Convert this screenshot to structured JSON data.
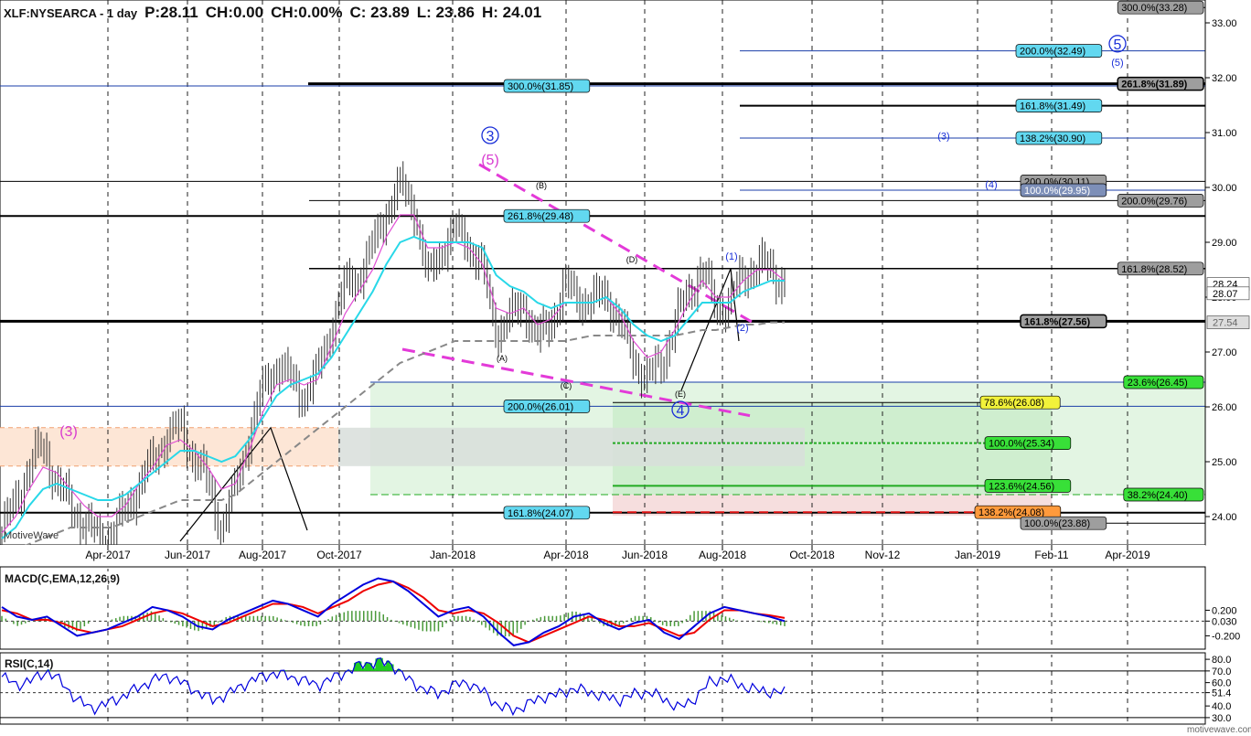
{
  "header": {
    "symbol": "XLF:NYSEARCA - 1 day",
    "price": "P:28.11",
    "change": "CH:0.00",
    "change_pct": "CH:0.00%",
    "close": "C: 23.89",
    "low": "L: 23.86",
    "high": "H: 24.01"
  },
  "watermarks": {
    "left": "MotiveWave",
    "footer": "motivewave.com"
  },
  "chart_data": [
    {
      "type": "candlestick",
      "title": "XLF:NYSEARCA - 1 day",
      "x_ticks": [
        "Apr-2017",
        "Jun-2017",
        "Aug-2017",
        "Oct-2017",
        "Jan-2018",
        "Apr-2018",
        "Jun-2018",
        "Aug-2018",
        "Oct-2018",
        "Nov-12",
        "Jan-2019",
        "Feb-11",
        "Apr-2019"
      ],
      "y_ticks": [
        24.0,
        25.0,
        26.0,
        27.0,
        28.0,
        29.0,
        30.0,
        31.0,
        32.0,
        33.0
      ],
      "ylim": [
        23.55,
        33.35
      ],
      "price_tags": [
        {
          "text": "28.24",
          "value": 28.24,
          "style": "white"
        },
        {
          "text": "28.07",
          "value": 28.07,
          "style": "white"
        },
        {
          "text": "27.54",
          "value": 27.54,
          "style": "grey"
        }
      ],
      "closes": [
        23.7,
        24.3,
        24.9,
        25.3,
        24.6,
        24.2,
        23.9,
        23.6,
        23.7,
        24.1,
        24.6,
        25.0,
        25.5,
        25.6,
        25.1,
        24.6,
        23.8,
        24.5,
        25.5,
        26.3,
        26.8,
        26.5,
        26.2,
        26.6,
        27.5,
        28.2,
        28.4,
        28.9,
        29.6,
        30.0,
        29.7,
        28.3,
        28.9,
        29.2,
        29.0,
        28.5,
        27.4,
        27.6,
        27.9,
        27.2,
        27.6,
        28.2,
        28.0,
        27.9,
        28.1,
        27.5,
        26.9,
        26.5,
        26.8,
        27.5,
        28.1,
        28.5,
        27.8,
        27.9,
        28.4,
        28.6,
        28.5,
        28.24
      ],
      "ma_cyan": [
        23.6,
        23.8,
        24.2,
        24.5,
        24.6,
        24.5,
        24.4,
        24.3,
        24.3,
        24.4,
        24.6,
        24.8,
        25.0,
        25.2,
        25.2,
        25.1,
        25.0,
        25.1,
        25.4,
        25.8,
        26.2,
        26.4,
        26.5,
        26.6,
        26.9,
        27.3,
        27.7,
        28.1,
        28.6,
        29.0,
        29.1,
        29.0,
        29.0,
        29.0,
        29.0,
        28.9,
        28.4,
        28.2,
        28.1,
        27.9,
        27.8,
        27.9,
        27.9,
        27.9,
        28.0,
        27.8,
        27.5,
        27.3,
        27.2,
        27.3,
        27.6,
        27.9,
        27.9,
        27.9,
        28.1,
        28.2,
        28.3,
        28.3
      ],
      "ma_magenta": [
        23.7,
        24.0,
        24.5,
        24.9,
        24.8,
        24.5,
        24.2,
        24.0,
        24.0,
        24.2,
        24.6,
        24.9,
        25.3,
        25.4,
        25.2,
        24.9,
        24.5,
        24.6,
        25.2,
        25.9,
        26.4,
        26.5,
        26.4,
        26.5,
        27.1,
        27.7,
        28.1,
        28.5,
        29.1,
        29.5,
        29.5,
        28.9,
        28.9,
        29.0,
        28.9,
        28.6,
        27.8,
        27.7,
        27.8,
        27.5,
        27.6,
        27.9,
        27.9,
        27.9,
        28.0,
        27.7,
        27.2,
        26.9,
        27.0,
        27.4,
        27.9,
        28.3,
        28.0,
        28.0,
        28.3,
        28.5,
        28.5,
        28.3
      ],
      "ma_grey": [
        23.3,
        23.4,
        23.5,
        23.6,
        23.7,
        23.8,
        23.8,
        23.8,
        23.8,
        23.9,
        24.0,
        24.1,
        24.2,
        24.3,
        24.3,
        24.3,
        24.3,
        24.4,
        24.6,
        24.8,
        25.0,
        25.2,
        25.4,
        25.6,
        25.8,
        26.0,
        26.2,
        26.4,
        26.6,
        26.8,
        26.9,
        27.0,
        27.1,
        27.2,
        27.2,
        27.2,
        27.2,
        27.2,
        27.2,
        27.2,
        27.2,
        27.2,
        27.25,
        27.3,
        27.3,
        27.3,
        27.3,
        27.3,
        27.3,
        27.3,
        27.35,
        27.4,
        27.4,
        27.45,
        27.5,
        27.5,
        27.54,
        27.54
      ],
      "hlines": [
        {
          "label": "261.8%(31.89)",
          "value": 31.89,
          "style": "black-thick-box",
          "box": "grey"
        },
        {
          "label": "300.0%(31.85)",
          "value": 31.85,
          "style": "blue-box",
          "box": "cyan"
        },
        {
          "label": "161.8%(31.49)",
          "value": 31.49,
          "style": "black",
          "box": "cyan"
        },
        {
          "label": "138.2%(30.90)",
          "value": 30.9,
          "style": "blue",
          "box": "cyan"
        },
        {
          "label": "200.0%(32.49)",
          "value": 32.49,
          "style": "blue",
          "box": "cyan"
        },
        {
          "label": "300.0%(33.28)",
          "value": 33.28,
          "style": "black",
          "box": "grey"
        },
        {
          "label": "200.0%(30.11)",
          "value": 30.11,
          "style": "black",
          "box": "grey"
        },
        {
          "label": "100.0%(29.95)",
          "value": 29.95,
          "style": "blue",
          "box": "slate"
        },
        {
          "label": "200.0%(29.76)",
          "value": 29.76,
          "style": "black",
          "box": "grey"
        },
        {
          "label": "261.8%(29.48)",
          "value": 29.48,
          "style": "black",
          "box": "cyan"
        },
        {
          "label": "161.8%(28.52)",
          "value": 28.52,
          "style": "black",
          "box": "grey"
        },
        {
          "label": "161.8%(27.56)",
          "value": 27.56,
          "style": "black-thick",
          "box": "grey"
        },
        {
          "label": "23.6%(26.45)",
          "value": 26.45,
          "style": "blue",
          "box": "green"
        },
        {
          "label": "200.0%(26.01)",
          "value": 26.01,
          "style": "blue",
          "box": "cyan"
        },
        {
          "label": "78.6%(26.08)",
          "value": 26.08,
          "style": "black",
          "box": "yellow"
        },
        {
          "label": "100.0%(25.34)",
          "value": 25.34,
          "style": "green-dotted",
          "box": "green"
        },
        {
          "label": "123.6%(24.56)",
          "value": 24.56,
          "style": "green",
          "box": "green"
        },
        {
          "label": "38.2%(24.40)",
          "value": 24.4,
          "style": "green-dashed",
          "box": "green"
        },
        {
          "label": "161.8%(24.07)",
          "value": 24.07,
          "style": "black",
          "box": "cyan"
        },
        {
          "label": "138.2%(24.08)",
          "value": 24.08,
          "style": "red-dashed",
          "box": "orange"
        },
        {
          "label": "100.0%(23.88)",
          "value": 23.88,
          "style": "black",
          "box": "grey"
        }
      ],
      "wave_labels": [
        {
          "text": "3",
          "style": "blue-circle"
        },
        {
          "text": "(5)",
          "style": "magenta"
        },
        {
          "text": "(3)",
          "style": "magenta"
        },
        {
          "text": "5",
          "style": "blue-circle"
        },
        {
          "text": "(5)",
          "style": "blue-small"
        },
        {
          "text": "(3)",
          "style": "blue-small"
        },
        {
          "text": "(4)",
          "style": "blue-small"
        },
        {
          "text": "(1)",
          "style": "blue-small"
        },
        {
          "text": "(2)",
          "style": "blue-small"
        },
        {
          "text": "4",
          "style": "blue-circle"
        },
        {
          "text": "(A)",
          "style": "black-small"
        },
        {
          "text": "(B)",
          "style": "black-small"
        },
        {
          "text": "(C)",
          "style": "black-small"
        },
        {
          "text": "(D)",
          "style": "black-small"
        },
        {
          "text": "(E)",
          "style": "black-small"
        }
      ]
    },
    {
      "type": "line",
      "title": "MACD(C,EMA,12,26,9)",
      "y_ticks": [
        0.2,
        0.03,
        -0.2
      ],
      "current": "0.030",
      "series": [
        {
          "color": "#0000dd",
          "values": [
            0.25,
            0.1,
            0.05,
            0.1,
            -0.05,
            -0.2,
            -0.15,
            -0.1,
            0.0,
            0.1,
            0.25,
            0.2,
            0.1,
            -0.05,
            -0.1,
            0.05,
            0.15,
            0.25,
            0.35,
            0.3,
            0.2,
            0.1,
            0.3,
            0.45,
            0.6,
            0.7,
            0.65,
            0.5,
            0.3,
            0.1,
            0.2,
            0.25,
            0.1,
            -0.15,
            -0.35,
            -0.3,
            -0.15,
            -0.05,
            0.1,
            0.15,
            0.0,
            -0.1,
            0.0,
            0.05,
            -0.15,
            -0.25,
            -0.05,
            0.15,
            0.25,
            0.2,
            0.15,
            0.1,
            0.03
          ]
        },
        {
          "color": "#ee0000",
          "values": [
            0.2,
            0.15,
            0.05,
            0.05,
            0.0,
            -0.1,
            -0.15,
            -0.1,
            -0.05,
            0.05,
            0.15,
            0.2,
            0.15,
            0.05,
            -0.05,
            0.0,
            0.1,
            0.2,
            0.3,
            0.3,
            0.25,
            0.15,
            0.25,
            0.35,
            0.5,
            0.6,
            0.65,
            0.55,
            0.4,
            0.2,
            0.15,
            0.2,
            0.15,
            0.0,
            -0.2,
            -0.3,
            -0.2,
            -0.1,
            0.0,
            0.1,
            0.05,
            -0.05,
            -0.05,
            0.0,
            -0.1,
            -0.2,
            -0.15,
            0.05,
            0.2,
            0.2,
            0.15,
            0.12,
            0.08
          ]
        }
      ]
    },
    {
      "type": "line",
      "title": "RSI(C,14)",
      "y_ticks": [
        80.0,
        70.0,
        60.0,
        51.4,
        40.0,
        30.0
      ],
      "current": "51.4",
      "series": [
        {
          "color": "#0000dd",
          "values": [
            65,
            58,
            62,
            70,
            60,
            45,
            38,
            42,
            48,
            55,
            62,
            66,
            60,
            52,
            45,
            50,
            58,
            64,
            68,
            66,
            62,
            58,
            64,
            70,
            76,
            78,
            75,
            62,
            55,
            50,
            58,
            60,
            52,
            40,
            36,
            42,
            48,
            50,
            55,
            52,
            48,
            45,
            50,
            52,
            46,
            38,
            46,
            60,
            64,
            58,
            54,
            52,
            51.4
          ]
        }
      ]
    }
  ]
}
